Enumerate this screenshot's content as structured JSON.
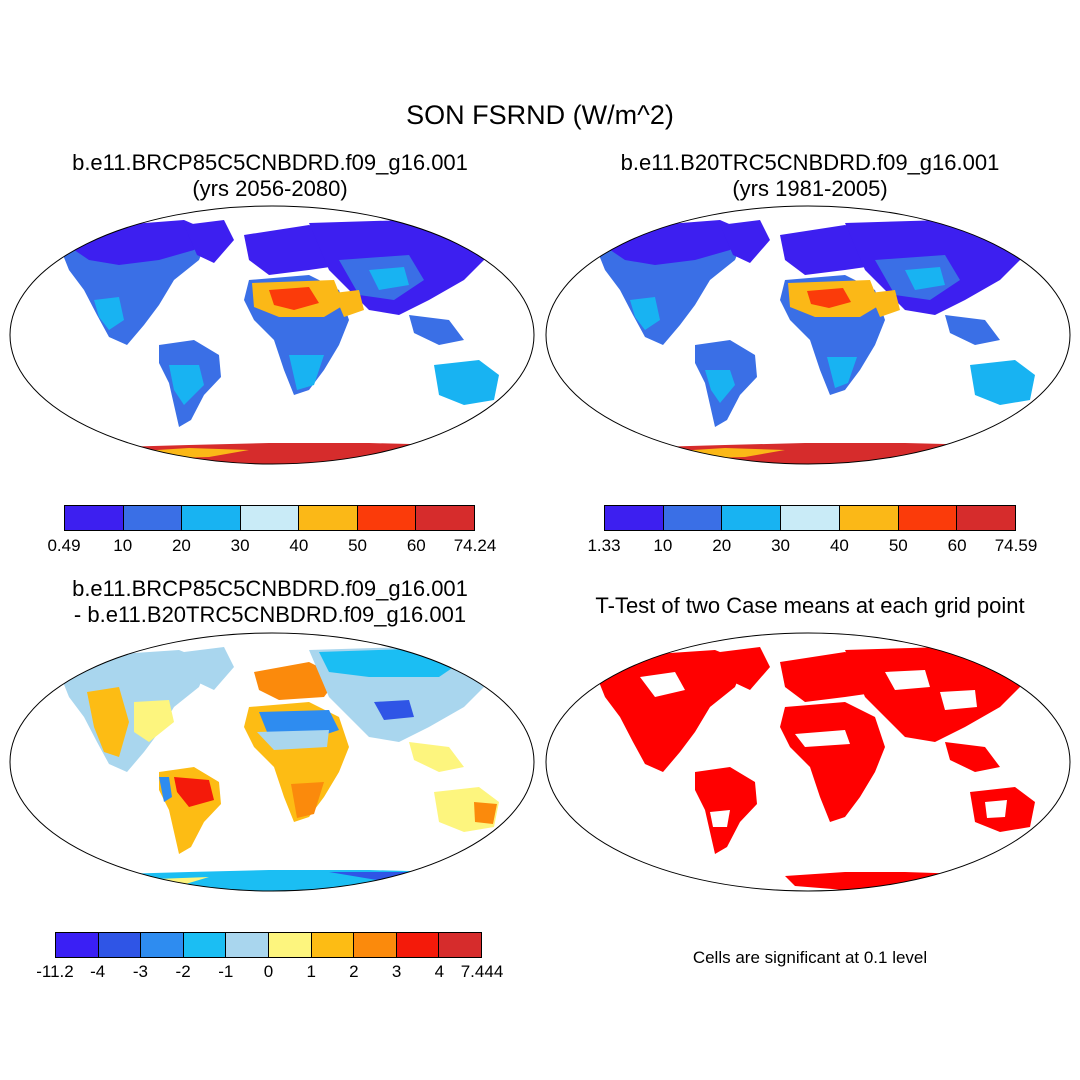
{
  "title": "SON FSRND (W/m^2)",
  "panels": [
    {
      "id": "p1",
      "title_line1": "b.e11.BRCP85C5CNBDRD.f09_g16.001",
      "title_line2": "(yrs 2056-2080)"
    },
    {
      "id": "p2",
      "title_line1": "b.e11.B20TRC5CNBDRD.f09_g16.001",
      "title_line2": "(yrs 1981-2005)"
    },
    {
      "id": "p3",
      "title_line1": "b.e11.BRCP85C5CNBDRD.f09_g16.001",
      "title_line2": "- b.e11.B20TRC5CNBDRD.f09_g16.001"
    },
    {
      "id": "p4",
      "title_line1": "T-Test of two Case means at each grid point"
    }
  ],
  "significance_note": "Cells are significant at 0.1 level",
  "colorbars": {
    "cb1": {
      "labels": [
        "0.49",
        "10",
        "20",
        "30",
        "40",
        "50",
        "60",
        "74.24"
      ],
      "colors": [
        "#3d1ff0",
        "#3a6fe6",
        "#18b3f2",
        "#c9ebf7",
        "#fbb817",
        "#fb3b0a",
        "#d62c2c"
      ]
    },
    "cb2": {
      "labels": [
        "1.33",
        "10",
        "20",
        "30",
        "40",
        "50",
        "60",
        "74.59"
      ],
      "colors": [
        "#3d1ff0",
        "#3a6fe6",
        "#18b3f2",
        "#c9ebf7",
        "#fbb817",
        "#fb3b0a",
        "#d62c2c"
      ]
    },
    "cb3": {
      "labels": [
        "-11.2",
        "-4",
        "-3",
        "-2",
        "-1",
        "0",
        "1",
        "2",
        "3",
        "4",
        "7.444"
      ],
      "colors": [
        "#3a1ff5",
        "#2f55e6",
        "#2e8cf0",
        "#1bbef3",
        "#a9d6ee",
        "#fdf57e",
        "#fdbc14",
        "#fb8a0c",
        "#f41a0a",
        "#d62c2c"
      ]
    }
  },
  "significance_color": "#ff0000",
  "ocean_color": "#ffffff",
  "coastline_color": "#000000"
}
